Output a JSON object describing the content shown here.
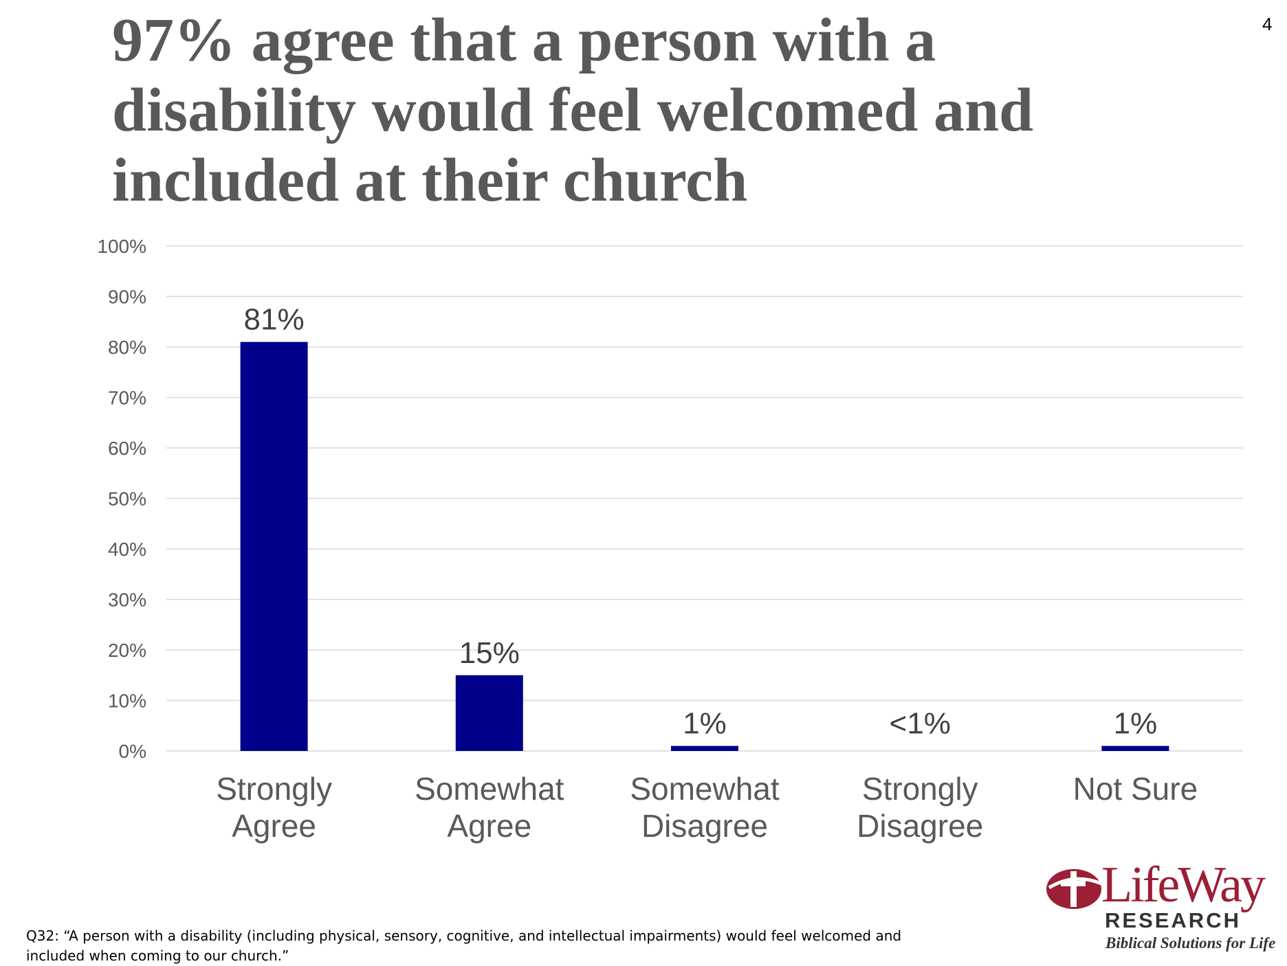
{
  "slide": {
    "title": "97% agree that a person with a disability would feel welcomed and included at their church",
    "page_number": "4",
    "footnote": "Q32: “A person with a disability (including physical, sensory, cognitive, and intellectual impairments) would feel welcomed and included when coming to our church.”"
  },
  "logo": {
    "wordmark": "LifeWay",
    "research": "RESEARCH",
    "tagline": "Biblical Solutions for Life",
    "brand_color": "#9b1f35"
  },
  "chart_data": {
    "type": "bar",
    "categories": [
      [
        "Strongly",
        "Agree"
      ],
      [
        "Somewhat",
        "Agree"
      ],
      [
        "Somewhat",
        "Disagree"
      ],
      [
        "Strongly",
        "Disagree"
      ],
      [
        "Not Sure"
      ]
    ],
    "values": [
      81,
      15,
      1,
      0.2,
      1
    ],
    "data_labels": [
      "81%",
      "15%",
      "1%",
      "<1%",
      "1%"
    ],
    "ylim": [
      0,
      100
    ],
    "yticks": [
      0,
      10,
      20,
      30,
      40,
      50,
      60,
      70,
      80,
      90,
      100
    ],
    "ytick_labels": [
      "0%",
      "10%",
      "20%",
      "30%",
      "40%",
      "50%",
      "60%",
      "70%",
      "80%",
      "90%",
      "100%"
    ],
    "grid": true,
    "bar_color": "#00008b",
    "grid_color": "#d9d9d9",
    "text_color": "#404040"
  }
}
